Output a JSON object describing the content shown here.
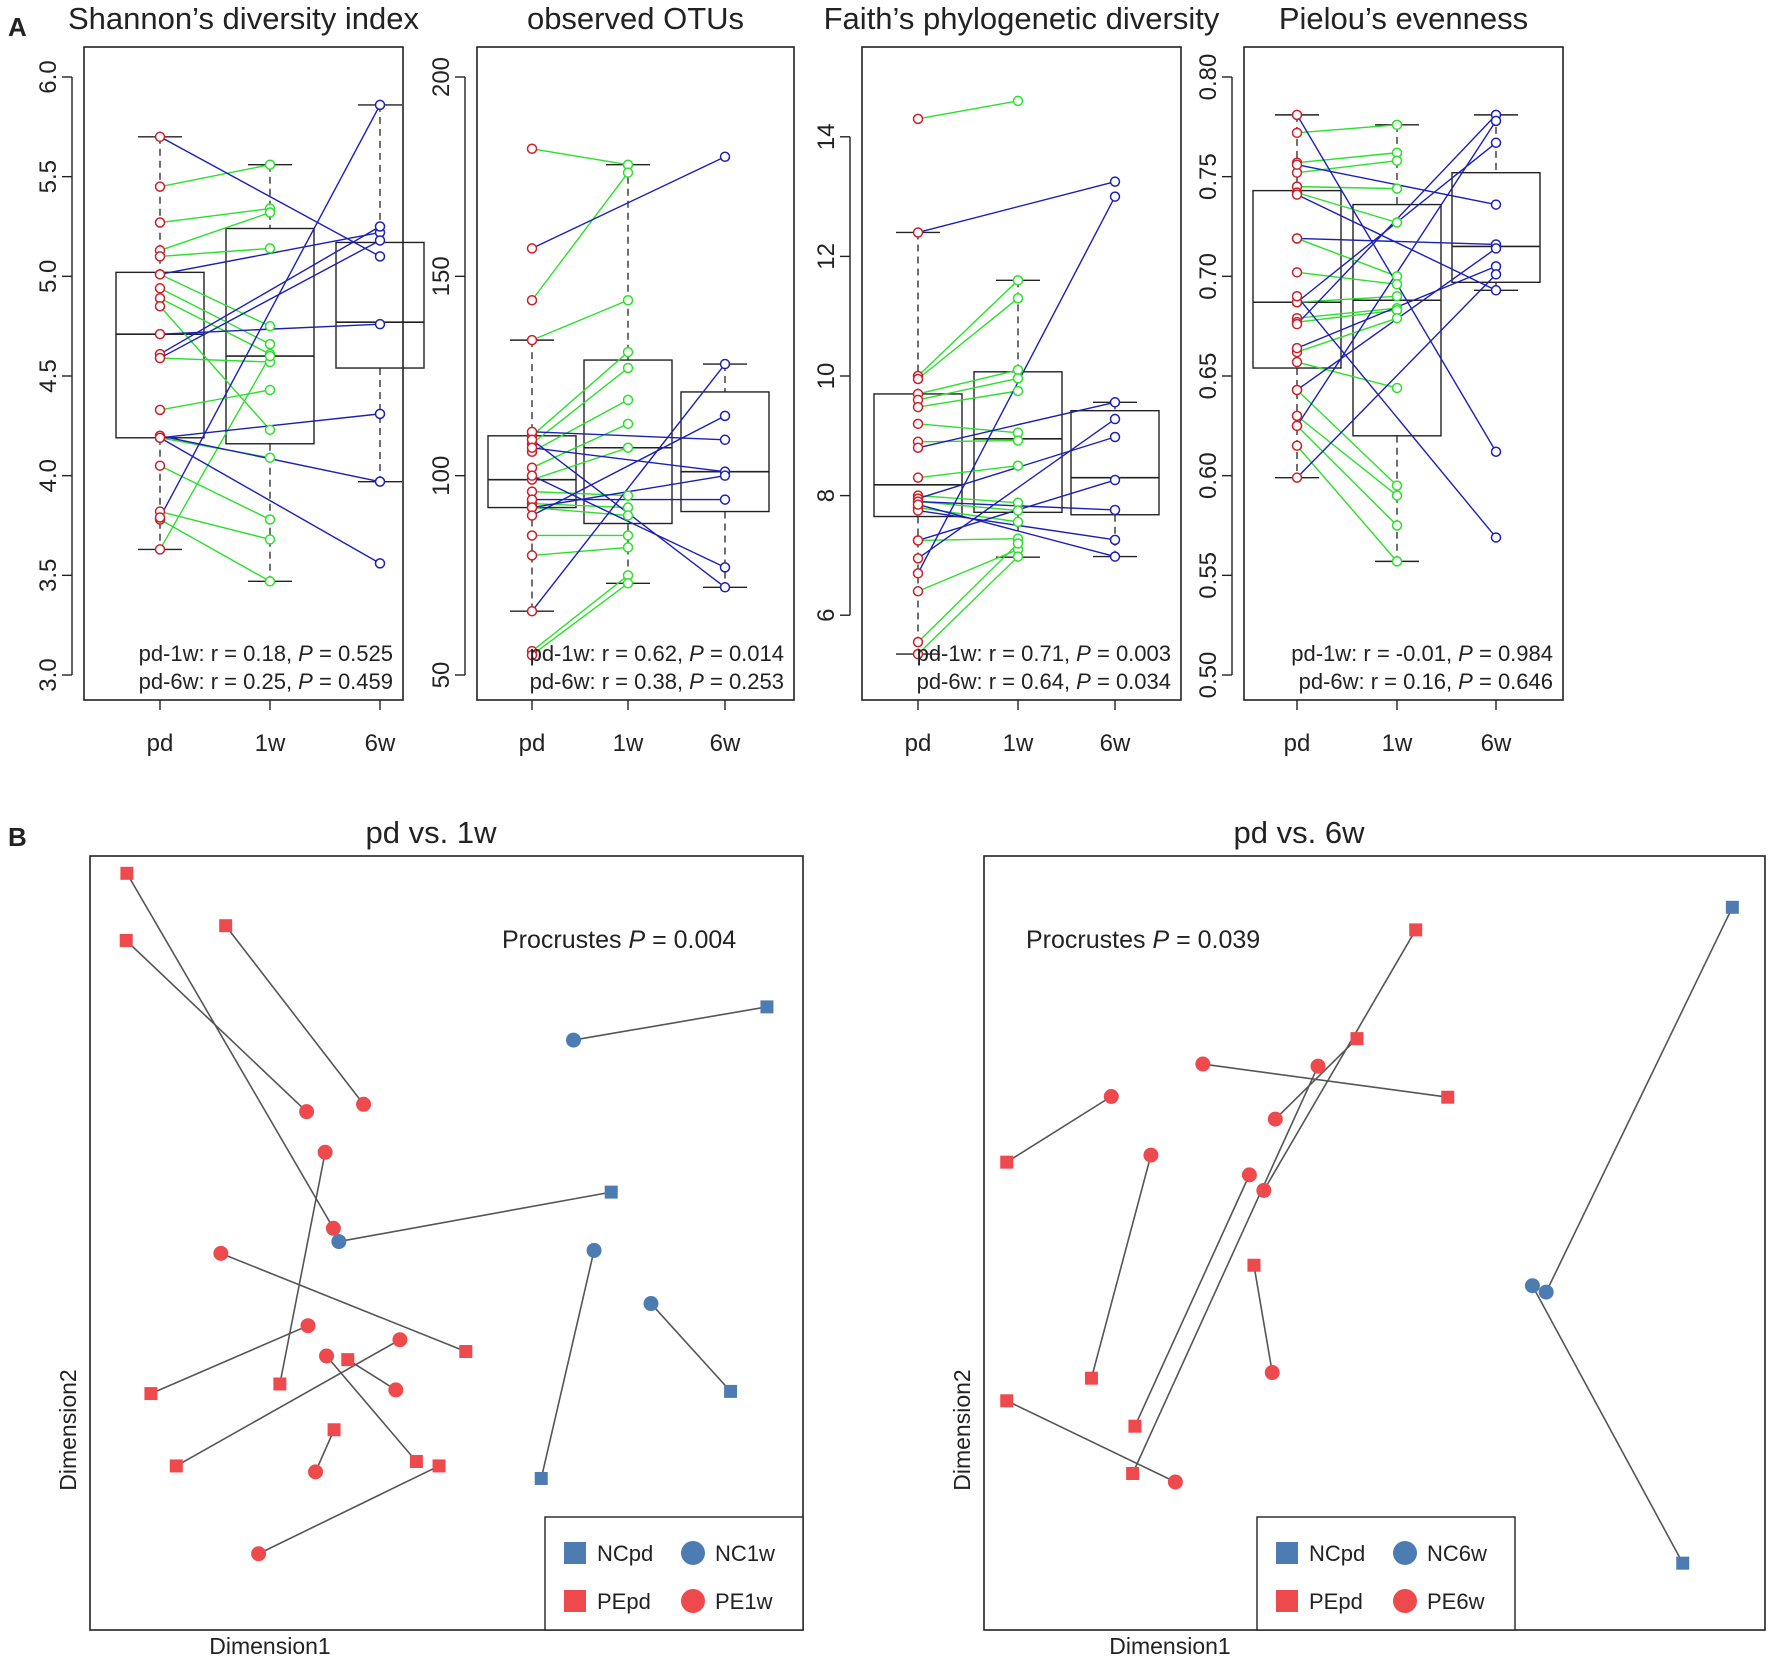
{
  "panels": {
    "a": "A",
    "b": "B"
  },
  "colors": {
    "pd": "#cc1f2a",
    "w1": "#2be02b",
    "w6": "#1c1fb8",
    "nc": "#4d7cb3",
    "pe": "#ee4a4d",
    "segment": "#555555",
    "box": "#222222"
  },
  "chart_data": [
    {
      "type": "box",
      "title": "Shannon’s diversity index",
      "categories": [
        "pd",
        "1w",
        "6w"
      ],
      "ylim": [
        3.0,
        6.0
      ],
      "yticks": [
        3.0,
        3.5,
        4.0,
        4.5,
        5.0,
        5.5,
        6.0
      ],
      "tick_decimals": 1,
      "boxes": [
        {
          "min": 3.63,
          "q1": 4.19,
          "median": 4.71,
          "q3": 5.02,
          "max": 5.7
        },
        {
          "min": 3.47,
          "q1": 4.16,
          "median": 4.6,
          "q3": 5.24,
          "max": 5.56
        },
        {
          "min": 3.97,
          "q1": 4.54,
          "median": 4.77,
          "q3": 5.17,
          "max": 5.86
        }
      ],
      "pairs_1w": [
        [
          5.45,
          5.56
        ],
        [
          5.27,
          5.34
        ],
        [
          5.13,
          5.32
        ],
        [
          5.1,
          5.14
        ],
        [
          5.01,
          4.75
        ],
        [
          4.94,
          4.66
        ],
        [
          4.89,
          4.61
        ],
        [
          4.85,
          4.23
        ],
        [
          4.59,
          4.57
        ],
        [
          4.33,
          4.43
        ],
        [
          4.19,
          4.09
        ],
        [
          4.05,
          3.78
        ],
        [
          3.82,
          3.68
        ],
        [
          3.78,
          3.47
        ],
        [
          3.63,
          4.6
        ]
      ],
      "pairs_6w": [
        [
          5.7,
          5.1
        ],
        [
          5.01,
          5.22
        ],
        [
          4.71,
          4.76
        ],
        [
          4.61,
          5.25
        ],
        [
          4.59,
          5.18
        ],
        [
          4.19,
          4.31
        ],
        [
          4.2,
          3.97
        ],
        [
          4.19,
          3.56
        ],
        [
          3.79,
          5.86
        ]
      ],
      "stats": [
        "pd-1w: r = 0.18, ",
        "0.525",
        "pd-6w: r = 0.25, ",
        "0.459"
      ]
    },
    {
      "type": "box",
      "title": "observed OTUs",
      "categories": [
        "pd",
        "1w",
        "6w"
      ],
      "ylim": [
        50,
        200
      ],
      "yticks": [
        50,
        100,
        150,
        200
      ],
      "tick_decimals": 0,
      "boxes": [
        {
          "min": 66,
          "q1": 92,
          "median": 99,
          "q3": 110,
          "max": 134
        },
        {
          "min": 73,
          "q1": 88,
          "median": 107,
          "q3": 129,
          "max": 178
        },
        {
          "min": 72,
          "q1": 91,
          "median": 101,
          "q3": 121,
          "max": 128
        }
      ],
      "pairs_1w": [
        [
          182,
          178
        ],
        [
          144,
          176
        ],
        [
          134,
          144
        ],
        [
          110,
          131
        ],
        [
          108,
          127
        ],
        [
          106,
          119
        ],
        [
          102,
          113
        ],
        [
          99,
          107
        ],
        [
          96,
          95
        ],
        [
          93,
          92
        ],
        [
          92,
          90
        ],
        [
          85,
          85
        ],
        [
          80,
          82
        ],
        [
          56,
          75
        ],
        [
          55,
          73
        ]
      ],
      "pairs_6w": [
        [
          157,
          180
        ],
        [
          111,
          109
        ],
        [
          109,
          72
        ],
        [
          107,
          101
        ],
        [
          100,
          77
        ],
        [
          94,
          94
        ],
        [
          92,
          100
        ],
        [
          90,
          115
        ],
        [
          66,
          128
        ]
      ],
      "stats": [
        "pd-1w: r = 0.62, ",
        "0.014",
        "pd-6w: r = 0.38, ",
        "0.253"
      ]
    },
    {
      "type": "box",
      "title": "Faith’s phylogenetic diversity",
      "categories": [
        "pd",
        "1w",
        "6w"
      ],
      "ylim": [
        5.0,
        15.0
      ],
      "yticks": [
        6,
        8,
        10,
        12,
        14
      ],
      "tick_decimals": 0,
      "boxes": [
        {
          "min": 5.35,
          "q1": 7.65,
          "median": 8.18,
          "q3": 9.7,
          "max": 12.4
        },
        {
          "min": 6.97,
          "q1": 7.72,
          "median": 8.95,
          "q3": 10.07,
          "max": 11.6
        },
        {
          "min": 6.98,
          "q1": 7.68,
          "median": 8.3,
          "q3": 9.42,
          "max": 9.56
        }
      ],
      "pairs_1w": [
        [
          14.3,
          14.6
        ],
        [
          10.0,
          11.6
        ],
        [
          9.95,
          11.3
        ],
        [
          9.7,
          10.1
        ],
        [
          9.6,
          9.96
        ],
        [
          9.48,
          9.75
        ],
        [
          9.2,
          9.05
        ],
        [
          8.9,
          8.92
        ],
        [
          8.3,
          8.5
        ],
        [
          8.0,
          7.88
        ],
        [
          7.9,
          7.75
        ],
        [
          7.8,
          7.56
        ],
        [
          7.25,
          7.28
        ],
        [
          6.4,
          7.1
        ],
        [
          5.55,
          7.2
        ],
        [
          5.35,
          6.98
        ]
      ],
      "pairs_6w": [
        [
          12.4,
          13.25
        ],
        [
          8.8,
          9.56
        ],
        [
          7.95,
          8.98
        ],
        [
          7.9,
          7.76
        ],
        [
          7.75,
          7.26
        ],
        [
          7.25,
          8.26
        ],
        [
          6.7,
          13.0
        ],
        [
          6.95,
          9.28
        ],
        [
          7.85,
          6.98
        ]
      ],
      "stats": [
        "pd-1w: r = 0.71, ",
        "0.003",
        "pd-6w: r = 0.64, ",
        "0.034"
      ]
    },
    {
      "type": "box",
      "title": "Pielou’s evenness",
      "categories": [
        "pd",
        "1w",
        "6w"
      ],
      "ylim": [
        0.5,
        0.8
      ],
      "yticks": [
        0.5,
        0.55,
        0.6,
        0.65,
        0.7,
        0.75,
        0.8
      ],
      "tick_decimals": 2,
      "boxes": [
        {
          "min": 0.599,
          "q1": 0.654,
          "median": 0.687,
          "q3": 0.743,
          "max": 0.781
        },
        {
          "min": 0.557,
          "q1": 0.62,
          "median": 0.688,
          "q3": 0.736,
          "max": 0.776
        },
        {
          "min": 0.693,
          "q1": 0.697,
          "median": 0.715,
          "q3": 0.752,
          "max": 0.781
        }
      ],
      "pairs_1w": [
        [
          0.772,
          0.776
        ],
        [
          0.757,
          0.762
        ],
        [
          0.752,
          0.758
        ],
        [
          0.745,
          0.744
        ],
        [
          0.742,
          0.727
        ],
        [
          0.719,
          0.7
        ],
        [
          0.702,
          0.696
        ],
        [
          0.687,
          0.69
        ],
        [
          0.679,
          0.684
        ],
        [
          0.677,
          0.683
        ],
        [
          0.662,
          0.679
        ],
        [
          0.657,
          0.644
        ],
        [
          0.643,
          0.595
        ],
        [
          0.63,
          0.59
        ],
        [
          0.625,
          0.575
        ],
        [
          0.615,
          0.557
        ]
      ],
      "pairs_6w": [
        [
          0.781,
          0.612
        ],
        [
          0.756,
          0.736
        ],
        [
          0.719,
          0.716
        ],
        [
          0.687,
          0.767
        ],
        [
          0.676,
          0.781
        ],
        [
          0.664,
          0.705
        ],
        [
          0.643,
          0.714
        ],
        [
          0.625,
          0.778
        ],
        [
          0.599,
          0.701
        ],
        [
          0.741,
          0.693
        ],
        [
          0.69,
          0.569
        ]
      ],
      "stats": [
        "pd-1w: r = -0.01, ",
        "0.984",
        "pd-6w: r = 0.16, ",
        "0.646"
      ]
    },
    {
      "type": "scatter",
      "title": "pd vs. 1w",
      "xlabel": "Dimension1",
      "ylabel": "Dimension2",
      "procrustes_label": "Procrustes ",
      "procrustes_p": "0.004",
      "legend": [
        "NCpd",
        "NC1w",
        "PEpd",
        "PE1w"
      ],
      "pairs": [
        {
          "group": "PE",
          "sq": [
            0.029,
            0.963
          ],
          "ci": [
            0.33,
            0.482
          ]
        },
        {
          "group": "PE",
          "sq": [
            0.028,
            0.872
          ],
          "ci": [
            0.291,
            0.64
          ]
        },
        {
          "group": "PE",
          "sq": [
            0.173,
            0.892
          ],
          "ci": [
            0.374,
            0.65
          ]
        },
        {
          "group": "PE",
          "sq": [
            0.252,
            0.271
          ],
          "ci": [
            0.318,
            0.585
          ]
        },
        {
          "group": "PE",
          "sq": [
            0.523,
            0.315
          ],
          "ci": [
            0.166,
            0.448
          ]
        },
        {
          "group": "PE",
          "sq": [
            0.064,
            0.258
          ],
          "ci": [
            0.293,
            0.35
          ]
        },
        {
          "group": "PE",
          "sq": [
            0.101,
            0.16
          ],
          "ci": [
            0.427,
            0.331
          ]
        },
        {
          "group": "PE",
          "sq": [
            0.331,
            0.209
          ],
          "ci": [
            0.304,
            0.152
          ]
        },
        {
          "group": "PE",
          "sq": [
            0.451,
            0.166
          ],
          "ci": [
            0.32,
            0.309
          ]
        },
        {
          "group": "PE",
          "sq": [
            0.484,
            0.16
          ],
          "ci": [
            0.221,
            0.041
          ]
        },
        {
          "group": "PE",
          "sq": [
            0.351,
            0.304
          ],
          "ci": [
            0.421,
            0.263
          ]
        },
        {
          "group": "NC",
          "sq": [
            0.962,
            0.782
          ],
          "ci": [
            0.68,
            0.737
          ]
        },
        {
          "group": "NC",
          "sq": [
            0.735,
            0.531
          ],
          "ci": [
            0.338,
            0.464
          ]
        },
        {
          "group": "NC",
          "sq": [
            0.633,
            0.143
          ],
          "ci": [
            0.71,
            0.452
          ]
        },
        {
          "group": "NC",
          "sq": [
            0.909,
            0.261
          ],
          "ci": [
            0.793,
            0.38
          ]
        }
      ]
    },
    {
      "type": "scatter",
      "title": "pd vs. 6w",
      "xlabel": "Dimension1",
      "ylabel": "Dimension2",
      "procrustes_label": "Procrustes ",
      "procrustes_p": "0.039",
      "legend": [
        "NCpd",
        "NC6w",
        "PEpd",
        "PE6w"
      ],
      "pairs": [
        {
          "group": "PE",
          "sq": [
            0.477,
            0.781
          ],
          "ci": [
            0.37,
            0.667
          ]
        },
        {
          "group": "PE",
          "sq": [
            0.554,
            0.935
          ],
          "ci": [
            0.355,
            0.566
          ]
        },
        {
          "group": "PE",
          "sq": [
            0.596,
            0.698
          ],
          "ci": [
            0.275,
            0.745
          ]
        },
        {
          "group": "PE",
          "sq": [
            0.018,
            0.606
          ],
          "ci": [
            0.155,
            0.699
          ]
        },
        {
          "group": "PE",
          "sq": [
            0.186,
            0.232
          ],
          "ci": [
            0.336,
            0.588
          ]
        },
        {
          "group": "PE",
          "sq": [
            0.018,
            0.268
          ],
          "ci": [
            0.239,
            0.153
          ]
        },
        {
          "group": "PE",
          "sq": [
            0.129,
            0.3
          ],
          "ci": [
            0.207,
            0.616
          ]
        },
        {
          "group": "PE",
          "sq": [
            0.183,
            0.165
          ],
          "ci": [
            0.426,
            0.742
          ]
        },
        {
          "group": "PE",
          "sq": [
            0.342,
            0.46
          ],
          "ci": [
            0.366,
            0.308
          ]
        },
        {
          "group": "NC",
          "sq": [
            0.969,
            0.967
          ],
          "ci": [
            0.725,
            0.422
          ]
        },
        {
          "group": "NC",
          "sq": [
            0.904,
            0.038
          ],
          "ci": [
            0.707,
            0.431
          ]
        }
      ]
    }
  ]
}
